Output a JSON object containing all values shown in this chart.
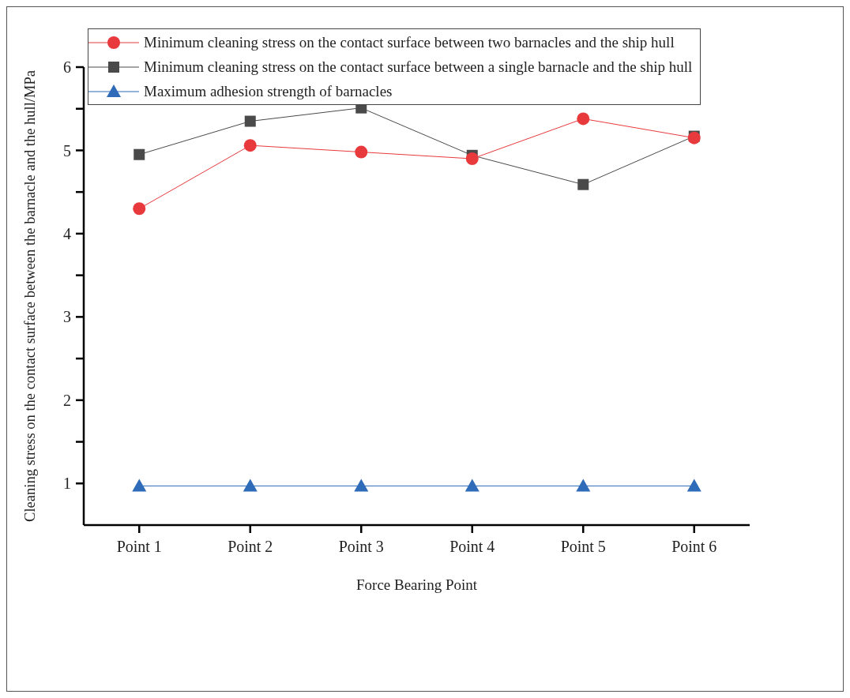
{
  "chart_data": {
    "type": "line",
    "xlabel": "Force Bearing Point",
    "ylabel": "Cleaning stress on the contact surface between the barnacle and the hull/MPa",
    "categories": [
      "Point 1",
      "Point 2",
      "Point 3",
      "Point 4",
      "Point 5",
      "Point 6"
    ],
    "series": [
      {
        "name": "Minimum cleaning stress on the contact surface between two barnacles and the ship hull",
        "color": "#e8393d",
        "marker": "circle",
        "values": [
          4.3,
          5.06,
          4.98,
          4.9,
          5.38,
          5.15
        ]
      },
      {
        "name": "Minimum cleaning stress on the contact surface between a single barnacle and the ship hull",
        "color": "#4a4a4a",
        "marker": "square",
        "values": [
          4.95,
          5.35,
          5.51,
          4.94,
          4.59,
          5.17
        ]
      },
      {
        "name": "Maximum adhesion strength of barnacles",
        "color": "#2e6bb8",
        "marker": "triangle",
        "values": [
          0.97,
          0.97,
          0.97,
          0.97,
          0.97,
          0.97
        ]
      }
    ],
    "ylim": [
      0.5,
      6
    ],
    "yticks": [
      1,
      {
        "value": 1.5,
        "label": null
      },
      2,
      {
        "value": 2.5,
        "label": null
      },
      3,
      {
        "value": 3.5,
        "label": null
      },
      4,
      {
        "value": 4.5,
        "label": null
      },
      5,
      {
        "value": 5.5,
        "label": null
      },
      6
    ],
    "grid": false,
    "legend": "top",
    "line_style": "solid"
  }
}
